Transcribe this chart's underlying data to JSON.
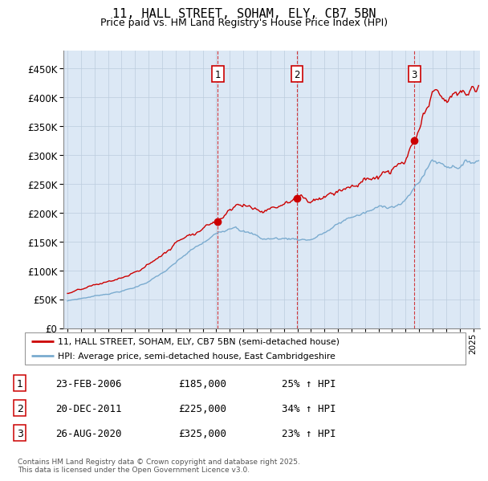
{
  "title": "11, HALL STREET, SOHAM, ELY, CB7 5BN",
  "subtitle": "Price paid vs. HM Land Registry's House Price Index (HPI)",
  "legend_label_red": "11, HALL STREET, SOHAM, ELY, CB7 5BN (semi-detached house)",
  "legend_label_blue": "HPI: Average price, semi-detached house, East Cambridgeshire",
  "footnote": "Contains HM Land Registry data © Crown copyright and database right 2025.\nThis data is licensed under the Open Government Licence v3.0.",
  "transactions": [
    {
      "num": "1",
      "date": "23-FEB-2006",
      "year": 2006.12,
      "price": 185000,
      "pct": "25% ↑ HPI"
    },
    {
      "num": "2",
      "date": "20-DEC-2011",
      "year": 2011.96,
      "price": 225000,
      "pct": "34% ↑ HPI"
    },
    {
      "num": "3",
      "date": "26-AUG-2020",
      "year": 2020.65,
      "price": 325000,
      "pct": "23% ↑ HPI"
    }
  ],
  "red_color": "#cc0000",
  "blue_color": "#7aabcf",
  "dashed_color": "#cc0000",
  "background_color": "#dce8f5",
  "plot_bg": "#ffffff",
  "grid_color": "#bbccdd",
  "ylim": [
    0,
    480000
  ],
  "yticks": [
    0,
    50000,
    100000,
    150000,
    200000,
    250000,
    300000,
    350000,
    400000,
    450000
  ],
  "xlim_start": 1994.7,
  "xlim_end": 2025.5,
  "marker_years": [
    2006.12,
    2011.96,
    2020.65
  ],
  "marker_prices": [
    185000,
    225000,
    325000
  ],
  "marker_labels": [
    "1",
    "2",
    "3"
  ]
}
